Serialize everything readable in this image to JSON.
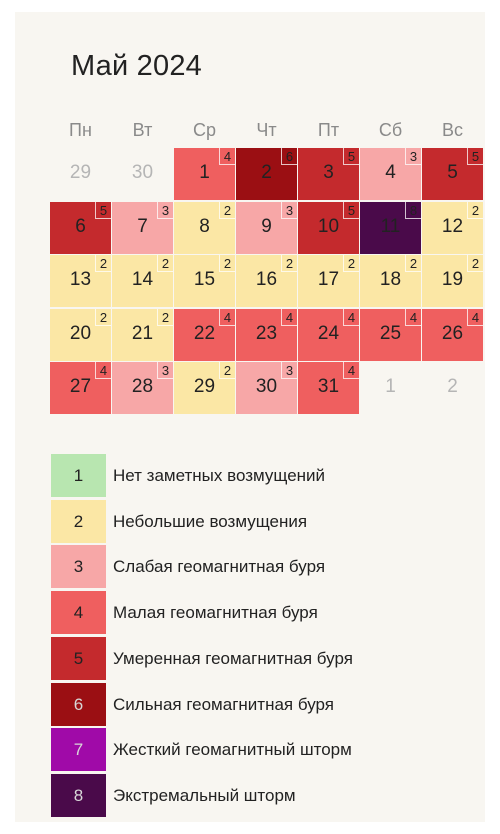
{
  "title": "Май 2024",
  "weekdays": [
    "Пн",
    "Вт",
    "Ср",
    "Чт",
    "Пт",
    "Сб",
    "Вс"
  ],
  "level_colors": {
    "1": "#b8e6b0",
    "2": "#fbe7a5",
    "3": "#f7a7a7",
    "4": "#ef5f5f",
    "5": "#c42a2d",
    "6": "#9b0f13",
    "7": "#a00aa8",
    "8": "#4a0a4a"
  },
  "calendar": [
    {
      "day": "29",
      "level": "",
      "muted": true
    },
    {
      "day": "30",
      "level": "",
      "muted": true
    },
    {
      "day": "1",
      "level": "4"
    },
    {
      "day": "2",
      "level": "6"
    },
    {
      "day": "3",
      "level": "5"
    },
    {
      "day": "4",
      "level": "3"
    },
    {
      "day": "5",
      "level": "5"
    },
    {
      "day": "6",
      "level": "5"
    },
    {
      "day": "7",
      "level": "3"
    },
    {
      "day": "8",
      "level": "2"
    },
    {
      "day": "9",
      "level": "3"
    },
    {
      "day": "10",
      "level": "5"
    },
    {
      "day": "11",
      "level": "8"
    },
    {
      "day": "12",
      "level": "2"
    },
    {
      "day": "13",
      "level": "2"
    },
    {
      "day": "14",
      "level": "2"
    },
    {
      "day": "15",
      "level": "2"
    },
    {
      "day": "16",
      "level": "2"
    },
    {
      "day": "17",
      "level": "2"
    },
    {
      "day": "18",
      "level": "2"
    },
    {
      "day": "19",
      "level": "2"
    },
    {
      "day": "20",
      "level": "2"
    },
    {
      "day": "21",
      "level": "2"
    },
    {
      "day": "22",
      "level": "4"
    },
    {
      "day": "23",
      "level": "4"
    },
    {
      "day": "24",
      "level": "4"
    },
    {
      "day": "25",
      "level": "4"
    },
    {
      "day": "26",
      "level": "4"
    },
    {
      "day": "27",
      "level": "4"
    },
    {
      "day": "28",
      "level": "3"
    },
    {
      "day": "29",
      "level": "2"
    },
    {
      "day": "30",
      "level": "3"
    },
    {
      "day": "31",
      "level": "4"
    },
    {
      "day": "1",
      "level": "",
      "muted": true
    },
    {
      "day": "2",
      "level": "",
      "muted": true
    }
  ],
  "legend": [
    {
      "level": "1",
      "label": "Нет заметных возмущений"
    },
    {
      "level": "2",
      "label": "Небольшие возмущения"
    },
    {
      "level": "3",
      "label": "Слабая геомагнитная буря"
    },
    {
      "level": "4",
      "label": "Малая геомагнитная буря"
    },
    {
      "level": "5",
      "label": "Умеренная геомагнитная буря"
    },
    {
      "level": "6",
      "label": "Сильная геомагнитная буря"
    },
    {
      "level": "7",
      "label": "Жесткий геомагнитный шторм"
    },
    {
      "level": "8",
      "label": "Экстремальный шторм"
    }
  ]
}
